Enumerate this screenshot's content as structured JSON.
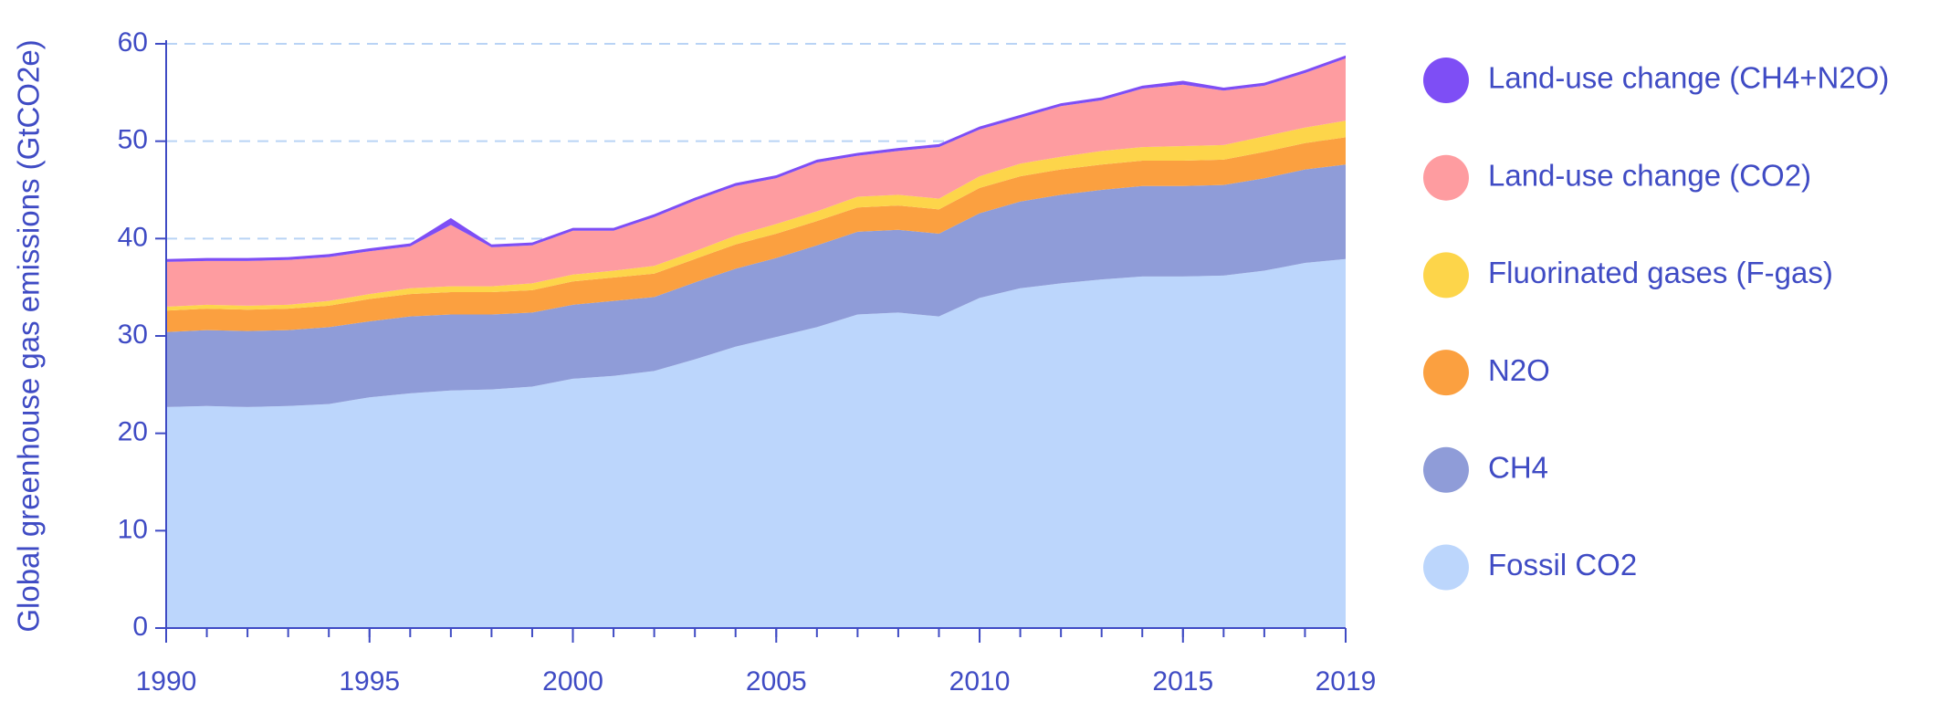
{
  "chart_data": {
    "type": "stacked_area",
    "y_label": "Global greenhouse gas emissions (GtCO2e)",
    "x": [
      1990,
      1991,
      1992,
      1993,
      1994,
      1995,
      1996,
      1997,
      1998,
      1999,
      2000,
      2001,
      2002,
      2003,
      2004,
      2005,
      2006,
      2007,
      2008,
      2009,
      2010,
      2011,
      2012,
      2013,
      2014,
      2015,
      2016,
      2017,
      2018,
      2019
    ],
    "series": [
      {
        "name": "Fossil CO2",
        "color": "#bcd6fc",
        "values": [
          22.7,
          22.8,
          22.7,
          22.8,
          23.0,
          23.7,
          24.1,
          24.4,
          24.5,
          24.8,
          25.6,
          25.9,
          26.4,
          27.6,
          28.9,
          29.9,
          30.9,
          32.2,
          32.4,
          32.0,
          33.9,
          34.9,
          35.4,
          35.8,
          36.1,
          36.1,
          36.2,
          36.7,
          37.5,
          37.9
        ]
      },
      {
        "name": "CH4",
        "color": "#8f9cd8",
        "values": [
          7.7,
          7.8,
          7.8,
          7.8,
          7.9,
          7.8,
          7.9,
          7.8,
          7.7,
          7.6,
          7.6,
          7.7,
          7.6,
          7.9,
          8.0,
          8.1,
          8.4,
          8.5,
          8.5,
          8.5,
          8.7,
          8.9,
          9.1,
          9.2,
          9.3,
          9.3,
          9.3,
          9.5,
          9.6,
          9.7
        ]
      },
      {
        "name": "N2O",
        "color": "#fba040",
        "values": [
          2.2,
          2.2,
          2.2,
          2.2,
          2.2,
          2.3,
          2.3,
          2.3,
          2.3,
          2.3,
          2.4,
          2.4,
          2.4,
          2.4,
          2.5,
          2.5,
          2.5,
          2.5,
          2.5,
          2.5,
          2.6,
          2.6,
          2.6,
          2.6,
          2.6,
          2.6,
          2.6,
          2.7,
          2.7,
          2.8
        ]
      },
      {
        "name": "Fluorinated gases (F-gas)",
        "color": "#fdd54a",
        "values": [
          0.4,
          0.4,
          0.4,
          0.4,
          0.5,
          0.5,
          0.6,
          0.6,
          0.6,
          0.7,
          0.7,
          0.7,
          0.8,
          0.8,
          0.9,
          1.0,
          1.0,
          1.1,
          1.1,
          1.1,
          1.2,
          1.3,
          1.3,
          1.4,
          1.4,
          1.5,
          1.5,
          1.6,
          1.6,
          1.7
        ]
      },
      {
        "name": "Land-use change (CO2)",
        "color": "#fe9ca0",
        "values": [
          4.6,
          4.5,
          4.6,
          4.6,
          4.5,
          4.4,
          4.3,
          6.3,
          4.0,
          3.9,
          4.5,
          4.1,
          5.0,
          5.2,
          5.1,
          4.7,
          5.0,
          4.2,
          4.5,
          5.3,
          4.8,
          4.7,
          5.2,
          5.2,
          6.0,
          6.3,
          5.6,
          5.2,
          5.6,
          6.4
        ]
      },
      {
        "name": "Land-use change (CH4+N2O)",
        "color": "#7e4ef5",
        "values": [
          0.3,
          0.3,
          0.3,
          0.3,
          0.3,
          0.3,
          0.3,
          0.7,
          0.3,
          0.3,
          0.3,
          0.3,
          0.3,
          0.3,
          0.3,
          0.3,
          0.3,
          0.3,
          0.3,
          0.3,
          0.3,
          0.3,
          0.3,
          0.3,
          0.3,
          0.4,
          0.3,
          0.3,
          0.3,
          0.3
        ]
      }
    ],
    "xlim": [
      1990,
      2019
    ],
    "xticks": [
      1990,
      1995,
      2000,
      2005,
      2010,
      2015,
      2019
    ],
    "ylim": [
      0,
      60
    ],
    "yticks": [
      0,
      10,
      20,
      30,
      40,
      50,
      60
    ],
    "grid": true,
    "legend": "right"
  }
}
